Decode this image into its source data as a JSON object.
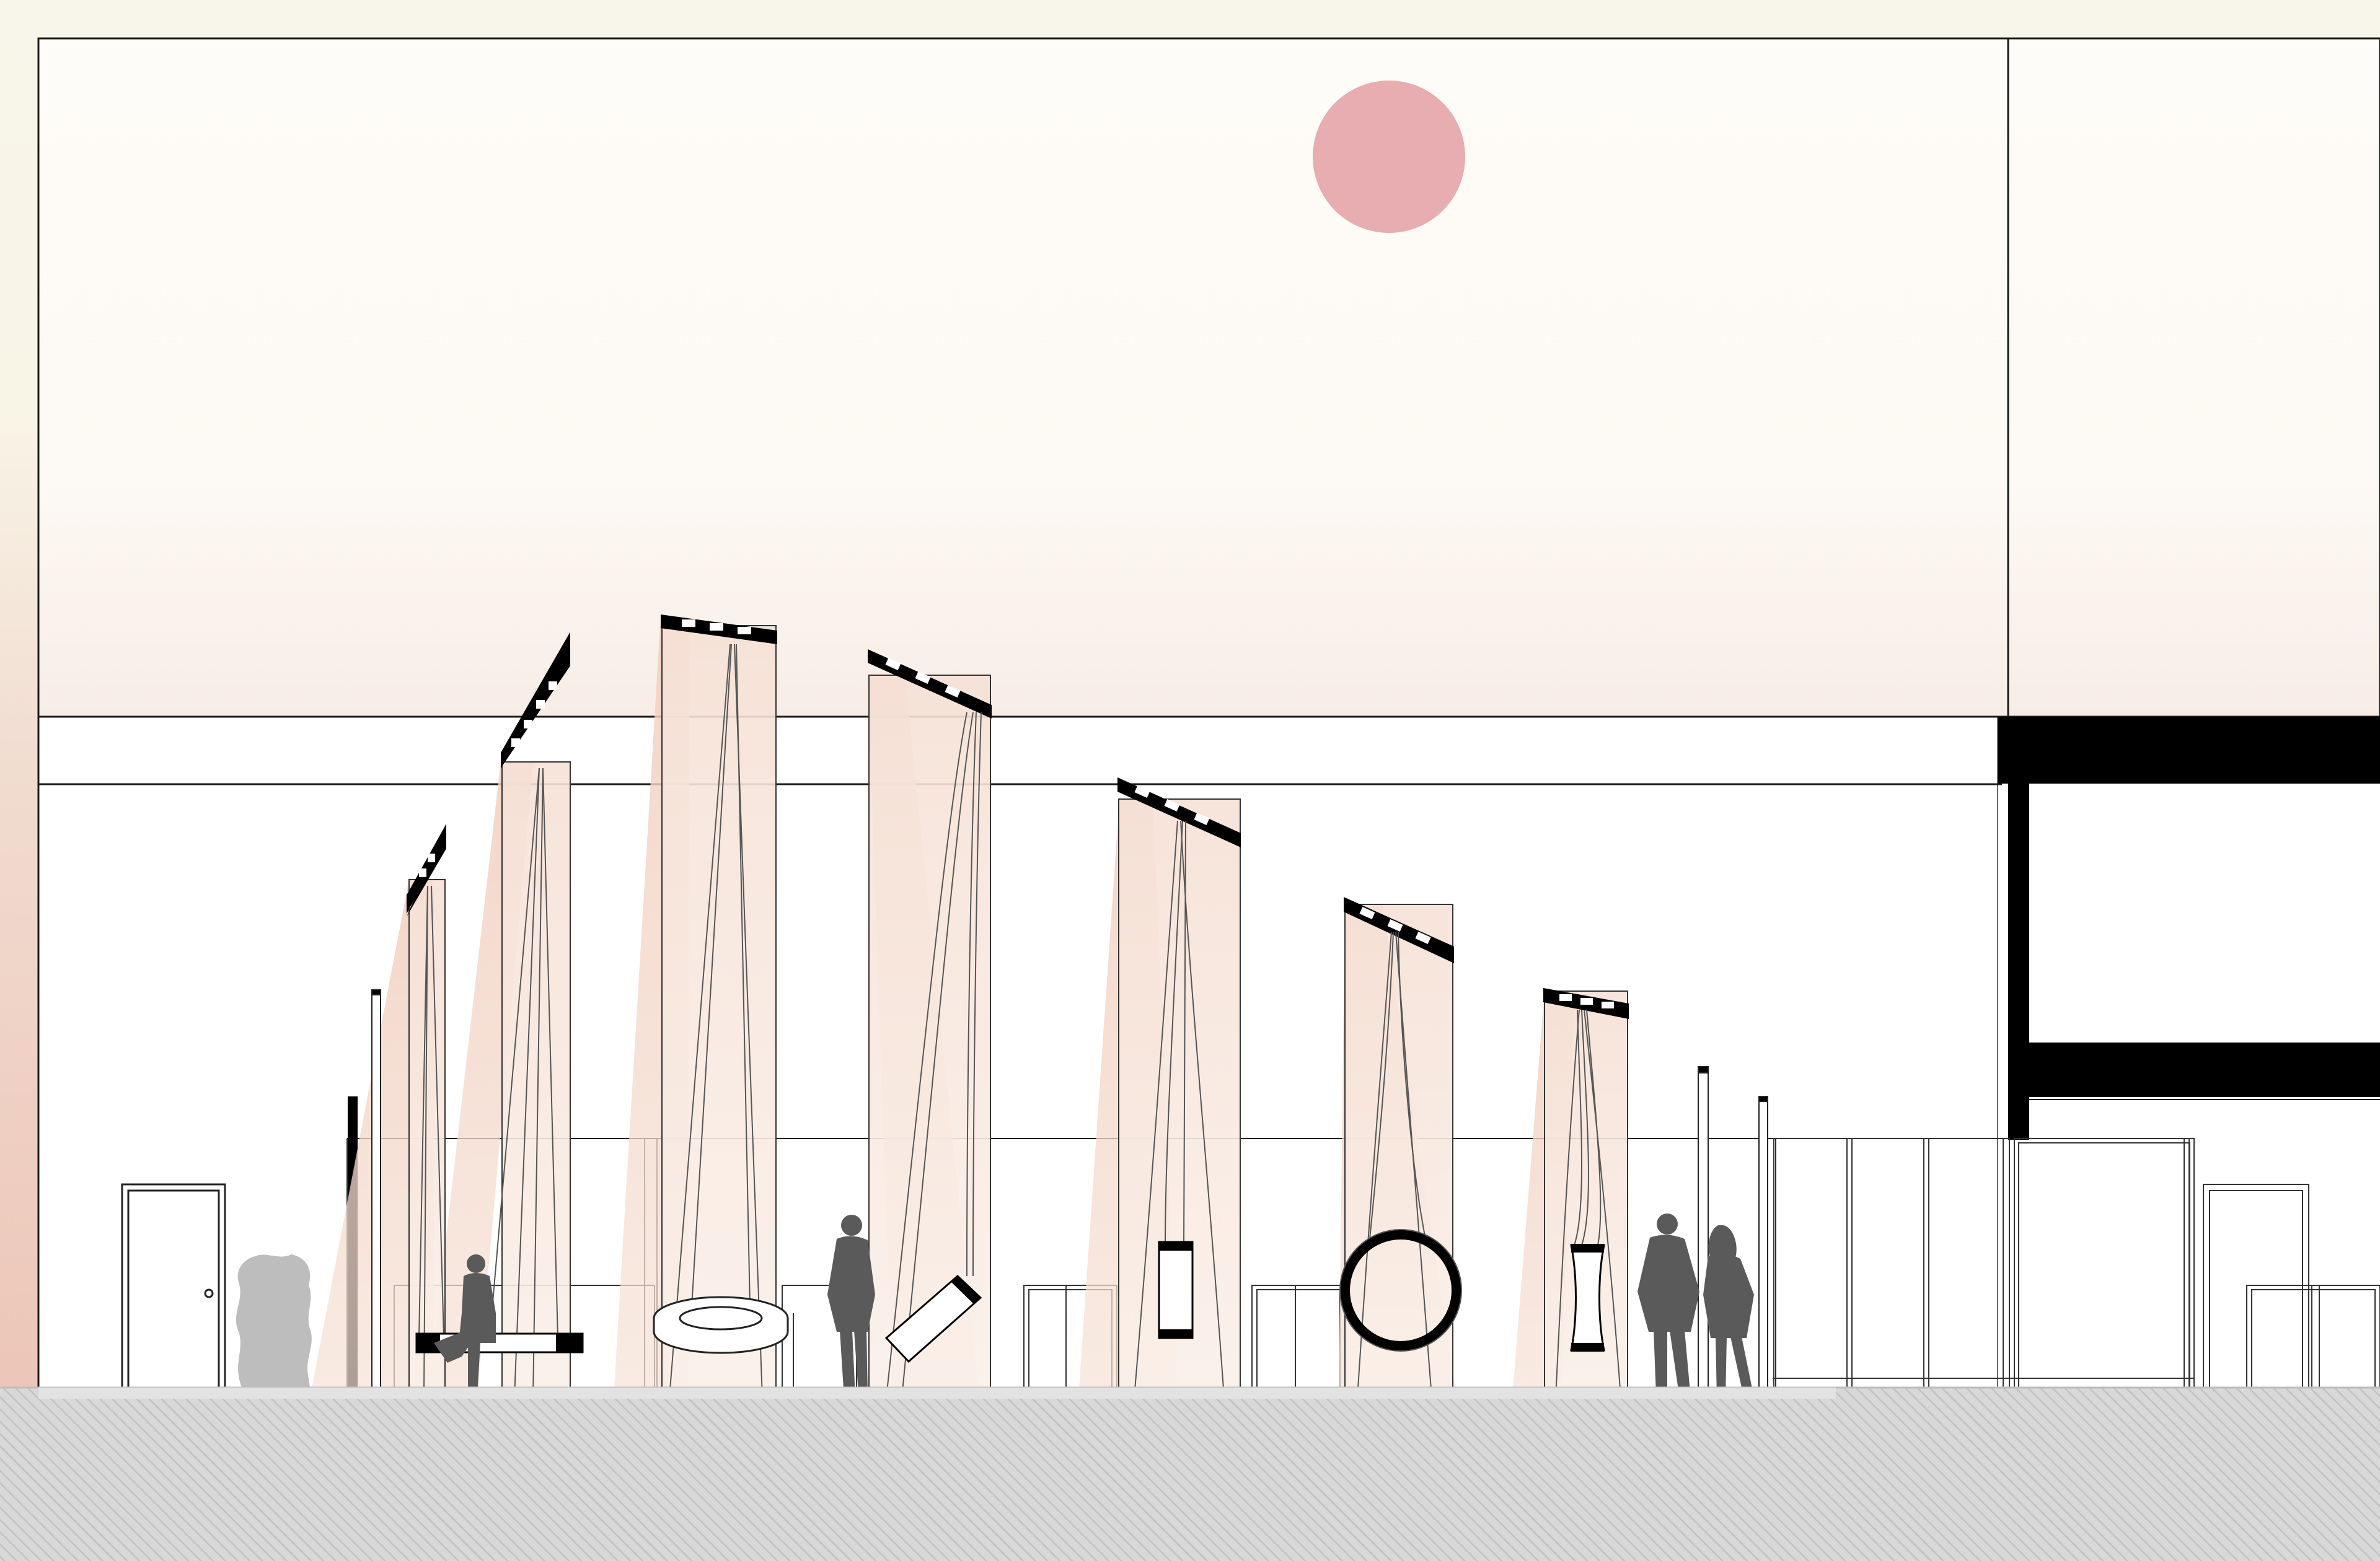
{
  "drawing": {
    "type": "architectural section elevation",
    "caption": "",
    "colors": {
      "background": "#fbf9f1",
      "sky_top": "#fefcf8",
      "sky_bottom": "#f7ede6",
      "left_band_top": "#f8f6ea",
      "left_band_bottom": "#eecabd",
      "sun": "#e8adb0",
      "light_cone": "#f3d6c8",
      "panel_tint": "#f9ece3",
      "silhouette": "#5a5a5a",
      "ground": "#d9d9d9",
      "ground_hatch": "#bdbdbd",
      "structure": "#000000"
    },
    "swing_types": [
      "bench-swing",
      "tire-swing",
      "tilted-seat-swing",
      "vertical-seat-swing",
      "ring-swing",
      "curved-seat-swing"
    ],
    "people_count": 4
  }
}
